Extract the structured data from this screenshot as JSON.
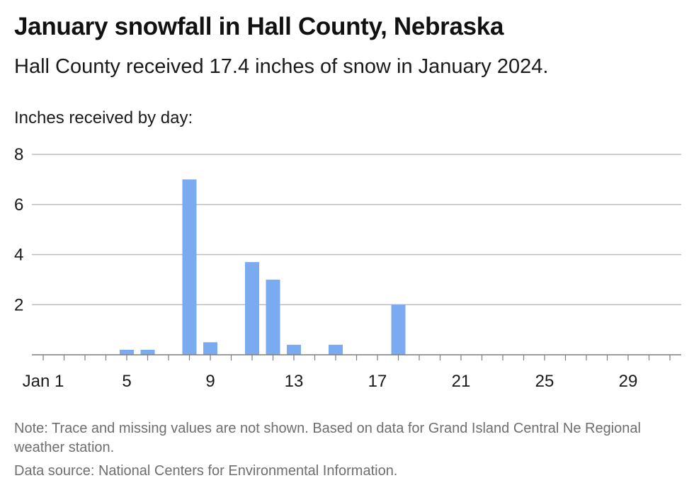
{
  "chart_data": {
    "type": "bar",
    "title": "January snowfall in Hall County, Nebraska",
    "subtitle": "Hall County received 17.4 inches of snow in January 2024.",
    "ylabel": "Inches received by day:",
    "xlabel": "",
    "ylim": [
      0,
      8
    ],
    "yticks": [
      {
        "value": 2,
        "label": "2"
      },
      {
        "value": 4,
        "label": "4"
      },
      {
        "value": 6,
        "label": "6"
      },
      {
        "value": 8,
        "label": "8"
      }
    ],
    "xlim": [
      1,
      31
    ],
    "xticks": [
      {
        "value": 1,
        "label": "Jan 1"
      },
      {
        "value": 5,
        "label": "5"
      },
      {
        "value": 9,
        "label": "9"
      },
      {
        "value": 13,
        "label": "13"
      },
      {
        "value": 17,
        "label": "17"
      },
      {
        "value": 21,
        "label": "21"
      },
      {
        "value": 25,
        "label": "25"
      },
      {
        "value": 29,
        "label": "29"
      }
    ],
    "grid": true,
    "bar_color": "#7aaaf0",
    "grid_color": "#bdbdbd",
    "axis_color": "#7f7f7f",
    "days": [
      5,
      6,
      8,
      9,
      11,
      12,
      13,
      15,
      18
    ],
    "values": [
      0.2,
      0.2,
      7.0,
      0.5,
      3.7,
      3.0,
      0.4,
      0.4,
      2.0
    ],
    "note": "Note: Trace and missing values are not shown. Based on data for Grand Island Central Ne Regional weather station.",
    "source": "Data source: National Centers for Environmental Information."
  }
}
